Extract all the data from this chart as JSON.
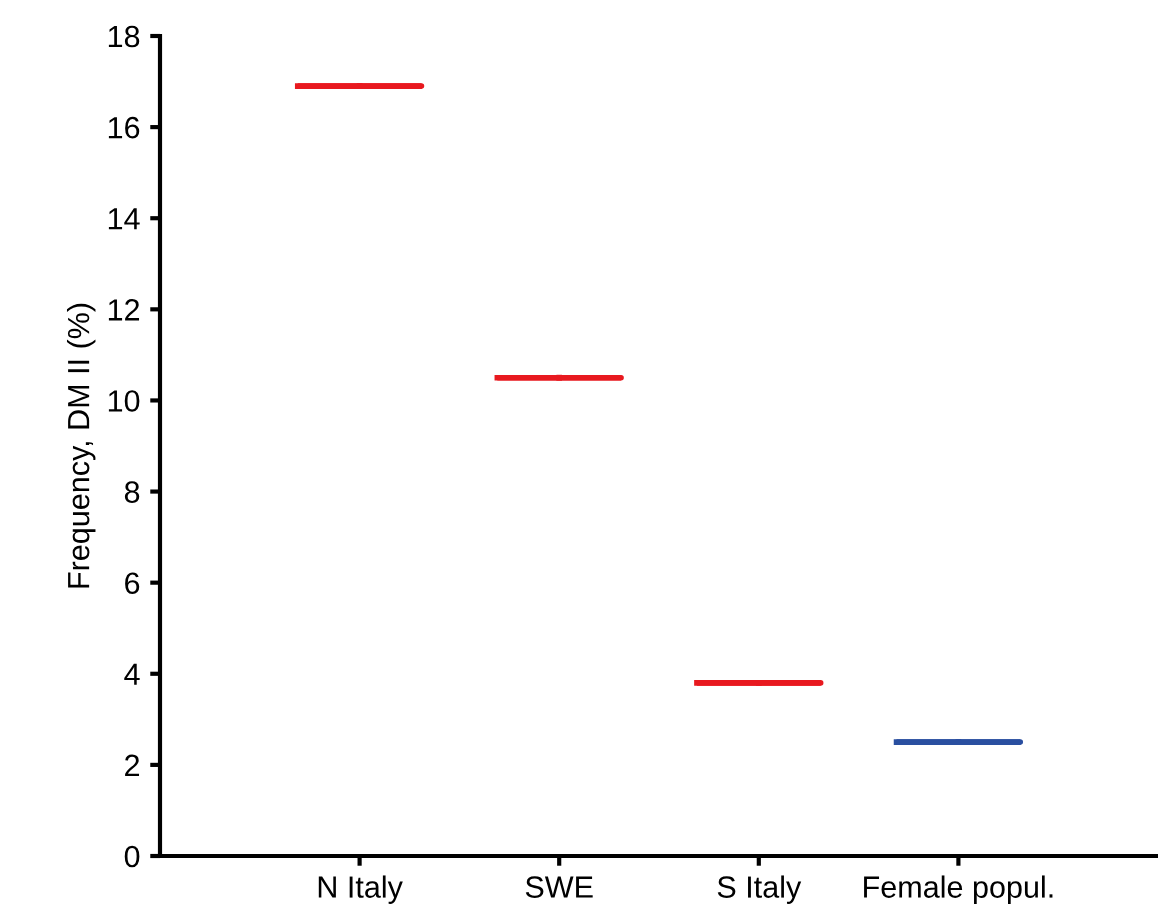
{
  "chart_data": {
    "type": "box",
    "ylabel": "Frequency, DM II (%)",
    "categories": [
      "N Italy",
      "SWE",
      "S Italy",
      "Female popul."
    ],
    "boxes": [
      {
        "low": 16.9,
        "q1": 16.9,
        "median": 16.9,
        "q3": 16.9,
        "high": 16.9
      },
      {
        "low": 10.5,
        "q1": 10.5,
        "median": 10.5,
        "q3": 10.5,
        "high": 10.5
      },
      {
        "low": 3.8,
        "q1": 3.8,
        "median": 3.8,
        "q3": 3.8,
        "high": 3.8
      },
      {
        "low": 2.5,
        "q1": 2.5,
        "median": 2.5,
        "q3": 2.5,
        "high": 2.5
      }
    ],
    "colors": [
      "#e8191f",
      "#e8191f",
      "#e8191f",
      "#2a4fa0"
    ],
    "ylim": [
      0,
      18
    ],
    "yticks": [
      0,
      2,
      4,
      6,
      8,
      10,
      12,
      14,
      16,
      18
    ],
    "grid": false,
    "legend": false
  }
}
